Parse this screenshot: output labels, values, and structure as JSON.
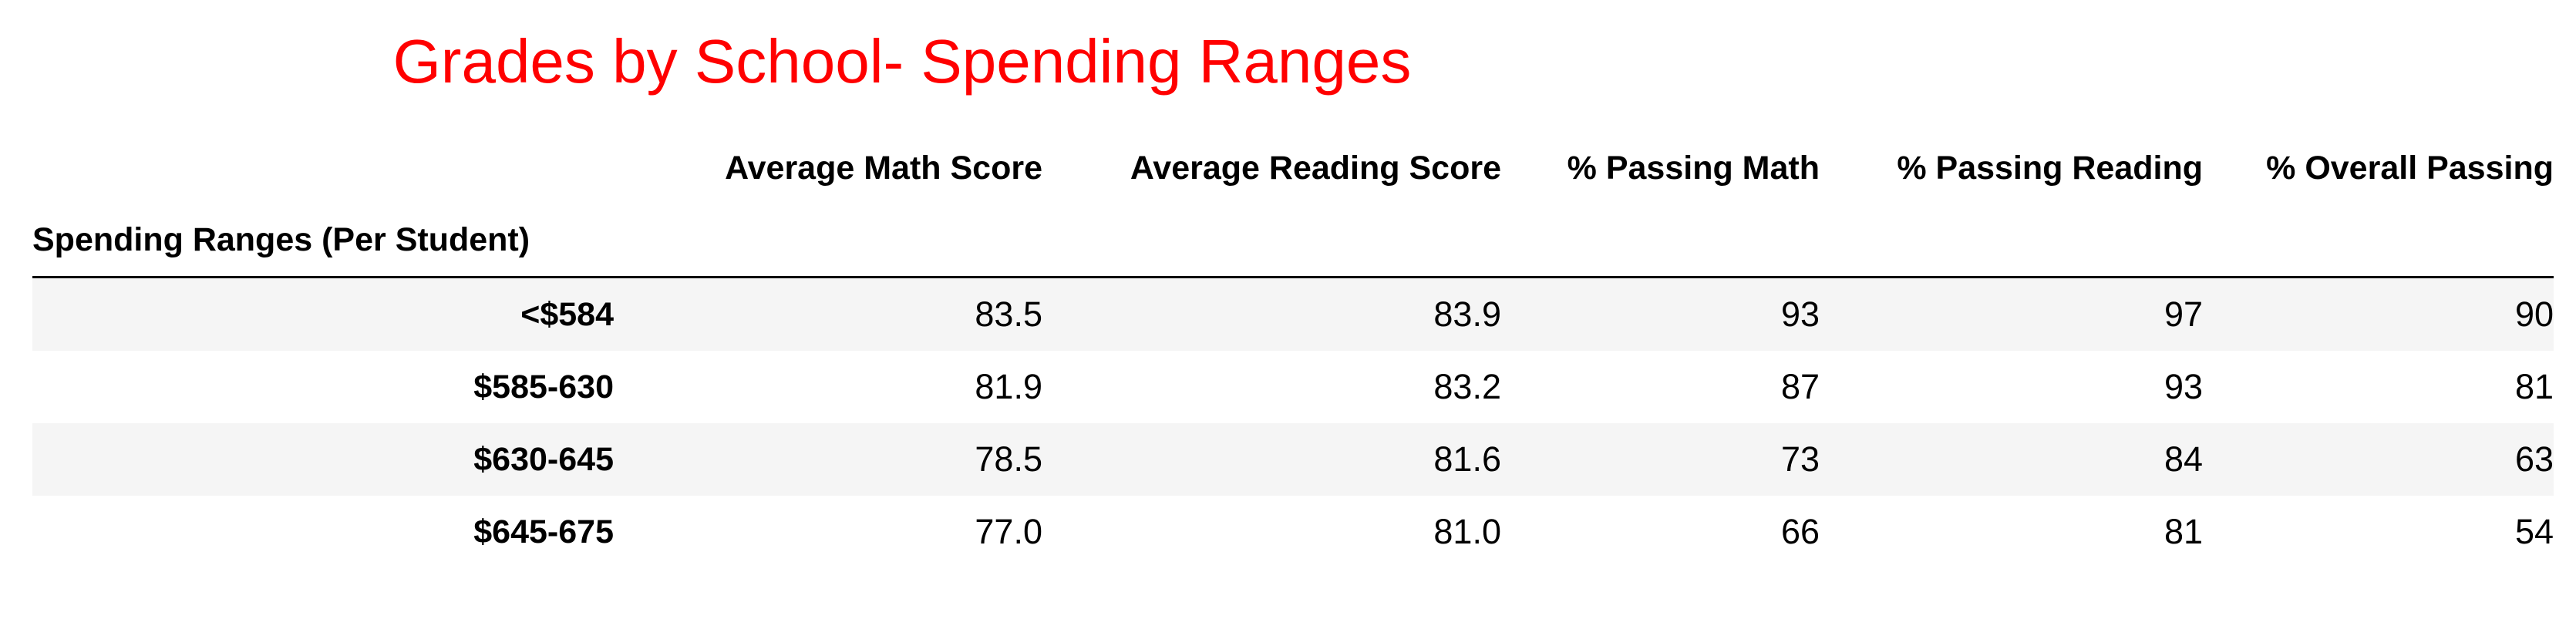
{
  "title": "Grades by School- Spending Ranges",
  "colors": {
    "title": "#ff0000",
    "stripe": "#f5f5f5",
    "rule": "#000000"
  },
  "table": {
    "index_name": "Spending Ranges (Per Student)",
    "columns": [
      "Average Math Score",
      "Average Reading Score",
      "% Passing Math",
      "% Passing Reading",
      "% Overall Passing"
    ],
    "rows": [
      {
        "label": "<$584",
        "values": [
          "83.5",
          "83.9",
          "93",
          "97",
          "90"
        ]
      },
      {
        "label": "$585-630",
        "values": [
          "81.9",
          "83.2",
          "87",
          "93",
          "81"
        ]
      },
      {
        "label": "$630-645",
        "values": [
          "78.5",
          "81.6",
          "73",
          "84",
          "63"
        ]
      },
      {
        "label": "$645-675",
        "values": [
          "77.0",
          "81.0",
          "66",
          "81",
          "54"
        ]
      }
    ]
  }
}
